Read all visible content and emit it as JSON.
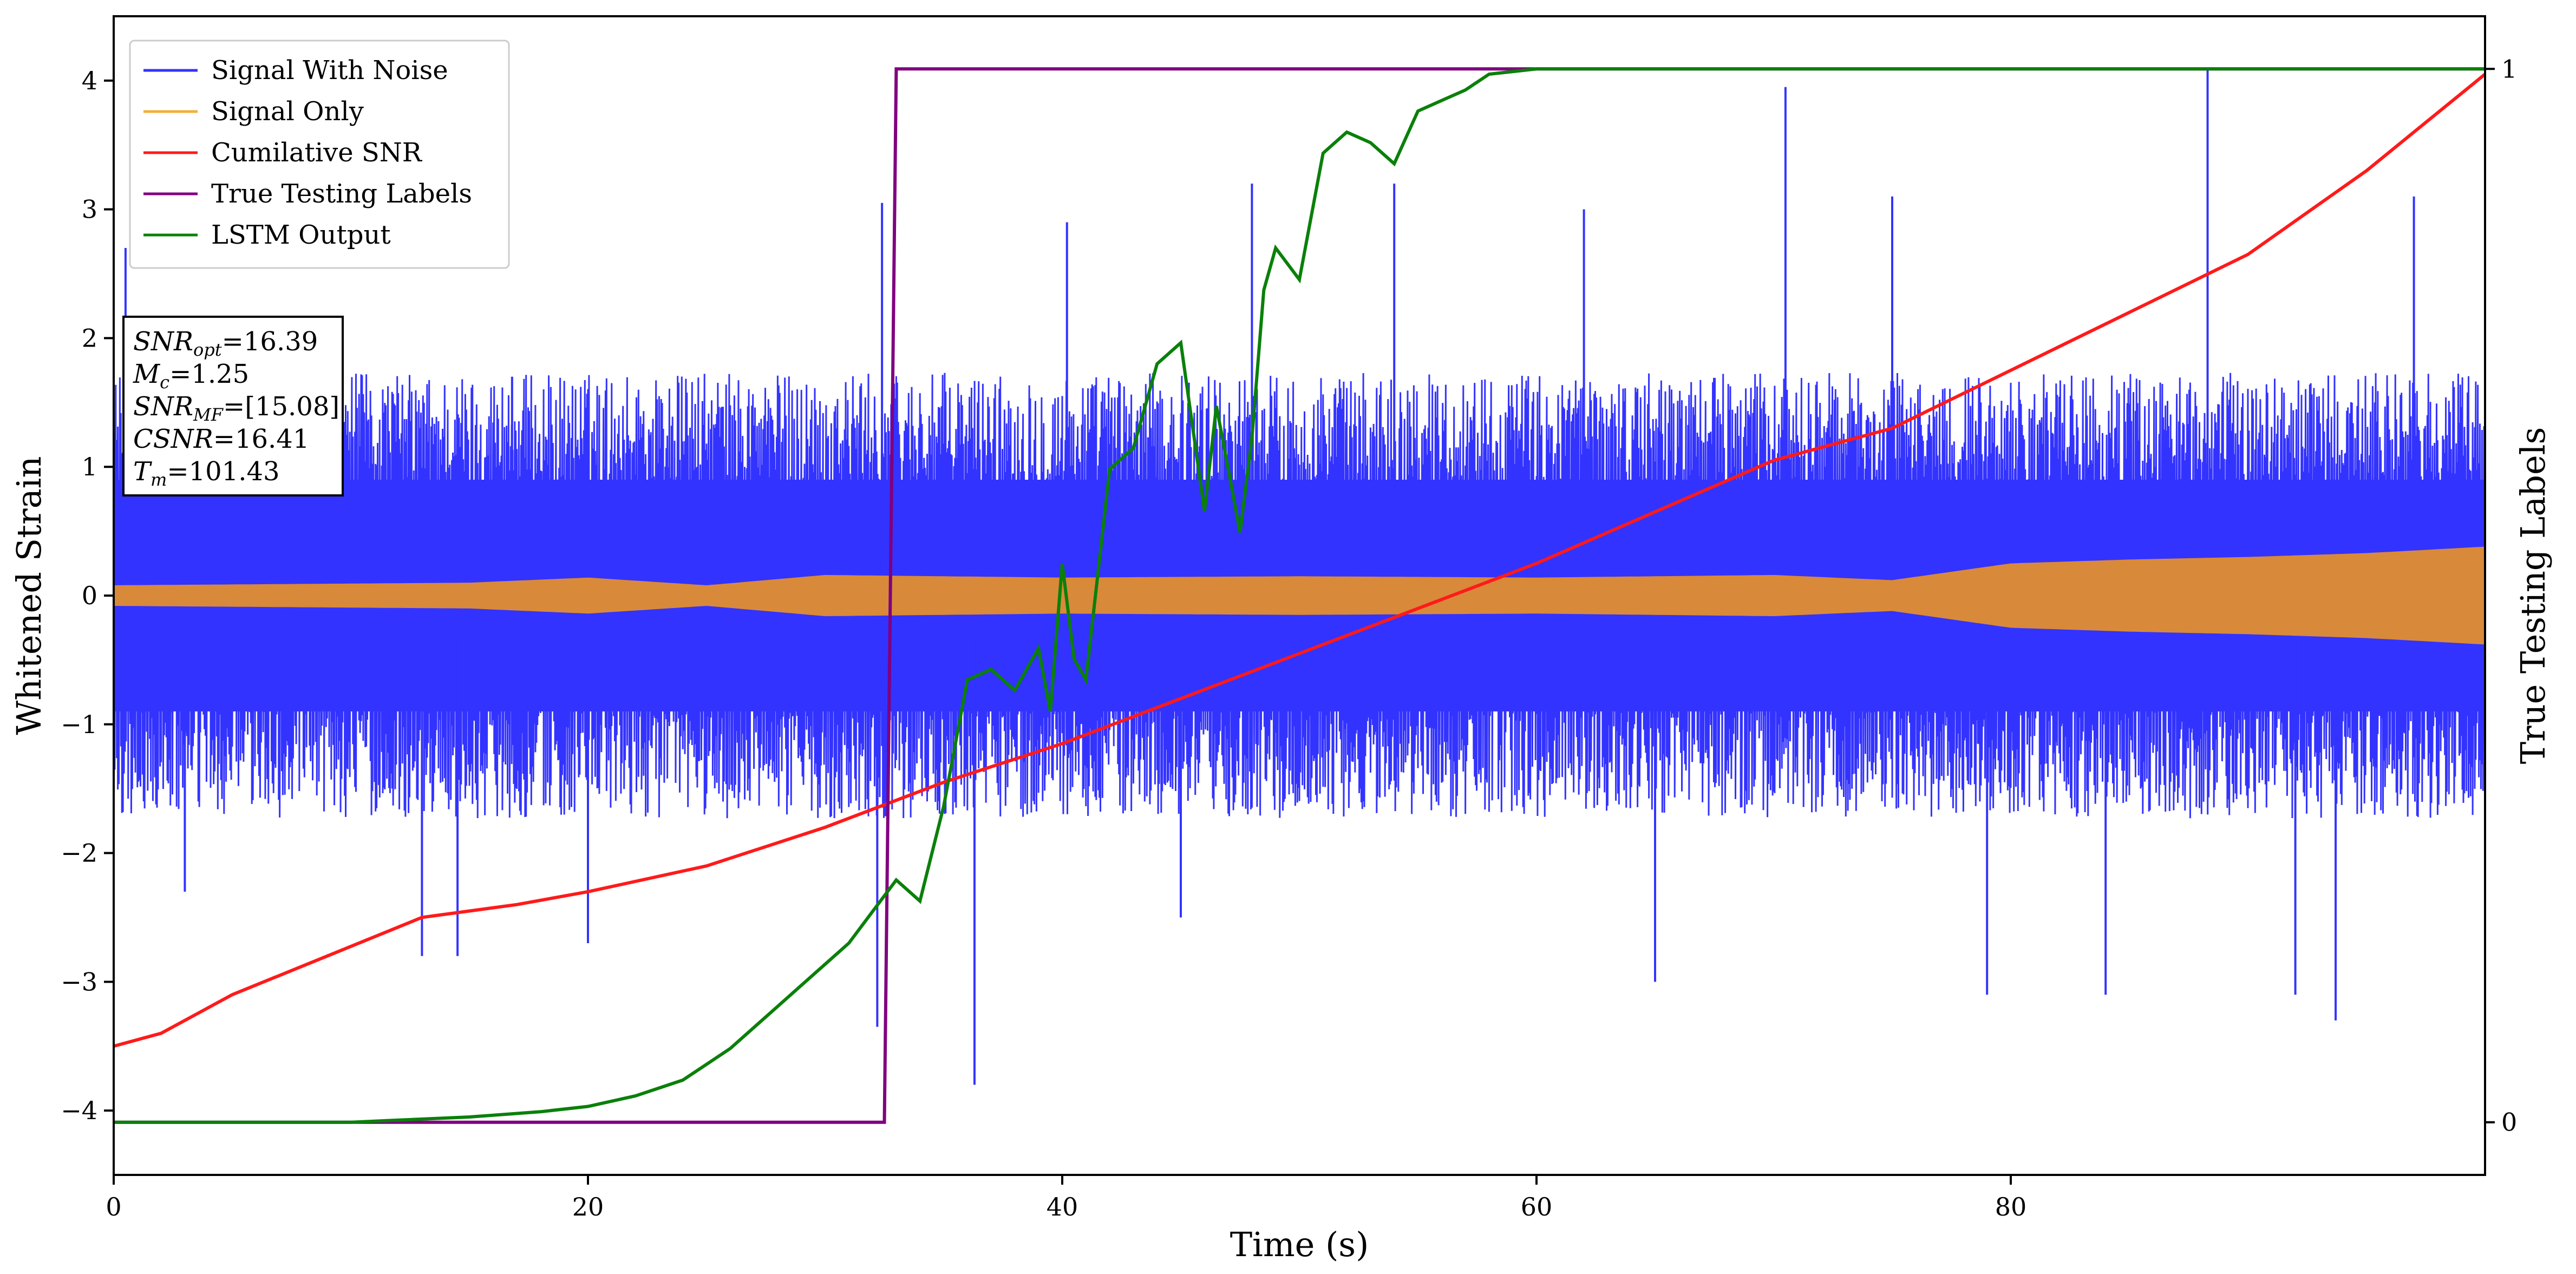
{
  "colors": {
    "noise": "#3333ff",
    "signal": "#d9893a",
    "signal_legend": "#f2b03c",
    "csnr": "#ff1a1a",
    "labels": "#800080",
    "lstm": "#0a800a"
  },
  "chart_data": {
    "type": "line",
    "xlabel": "Time (s)",
    "ylabel": "Whitened Strain",
    "ylabel_right": "True Testing Labels",
    "xlim": [
      0,
      100
    ],
    "ylim": [
      -4.5,
      4.5
    ],
    "ylim_right": [
      -0.05,
      1.05
    ],
    "xticks": [
      "0",
      "20",
      "40",
      "60",
      "80"
    ],
    "yticks": [
      "−4",
      "−3",
      "−2",
      "−1",
      "0",
      "1",
      "2",
      "3",
      "4"
    ],
    "yticks_right": [
      "0",
      "1"
    ],
    "legend": {
      "position": "top-left",
      "entries": [
        "Signal With Noise",
        "Signal Only",
        "Cumilative SNR",
        "True Testing Labels",
        "LSTM Output"
      ]
    },
    "annotation": {
      "lines": [
        {
          "base": "SNR",
          "sub": "opt",
          "value": "=16.39"
        },
        {
          "base": "M",
          "sub": "c",
          "value": "=1.25"
        },
        {
          "base": "SNR",
          "sub": "MF",
          "value": "=[15.08]"
        },
        {
          "base": "CSNR",
          "sub": "",
          "value": "=16.41"
        },
        {
          "base": "T",
          "sub": "m",
          "value": "=101.43"
        }
      ]
    },
    "series": [
      {
        "name": "Signal With Noise",
        "axis": "left",
        "band": {
          "typical": 0.9,
          "extreme_max": 4.1,
          "extreme_min": -3.8,
          "inner_hole": 0.2
        },
        "spikes": [
          [
            0.5,
            2.7
          ],
          [
            3,
            -2.3
          ],
          [
            13,
            -2.8
          ],
          [
            14.5,
            -2.8
          ],
          [
            16.8,
            1.7
          ],
          [
            20,
            -2.7
          ],
          [
            32.4,
            3.05
          ],
          [
            32.2,
            -3.35
          ],
          [
            36.3,
            -3.8
          ],
          [
            40.2,
            2.9
          ],
          [
            45,
            -2.5
          ],
          [
            48,
            3.2
          ],
          [
            54,
            3.2
          ],
          [
            62,
            3.0
          ],
          [
            65,
            -3.0
          ],
          [
            70.5,
            3.95
          ],
          [
            75,
            3.1
          ],
          [
            79,
            -3.1
          ],
          [
            84,
            -3.1
          ],
          [
            88.3,
            4.1
          ],
          [
            92,
            -3.1
          ],
          [
            93.7,
            -3.3
          ],
          [
            97,
            3.1
          ]
        ]
      },
      {
        "name": "Signal Only",
        "axis": "left",
        "amplitude": [
          [
            0,
            0.08
          ],
          [
            15,
            0.1
          ],
          [
            20,
            0.14
          ],
          [
            25,
            0.08
          ],
          [
            30,
            0.16
          ],
          [
            40,
            0.14
          ],
          [
            50,
            0.15
          ],
          [
            60,
            0.14
          ],
          [
            70,
            0.16
          ],
          [
            75,
            0.12
          ],
          [
            80,
            0.25
          ],
          [
            85,
            0.28
          ],
          [
            90,
            0.3
          ],
          [
            95,
            0.33
          ],
          [
            100,
            0.38
          ]
        ]
      },
      {
        "name": "Cumilative SNR",
        "axis": "left",
        "x": [
          0,
          2,
          5,
          9,
          13,
          17,
          20,
          25,
          30,
          35,
          40,
          45,
          50,
          55,
          60,
          65,
          70,
          75,
          80,
          85,
          90,
          95,
          100
        ],
        "y": [
          -3.5,
          -3.4,
          -3.1,
          -2.8,
          -2.5,
          -2.4,
          -2.3,
          -2.1,
          -1.8,
          -1.45,
          -1.15,
          -0.8,
          -0.45,
          -0.1,
          0.25,
          0.65,
          1.05,
          1.3,
          1.75,
          2.2,
          2.65,
          3.3,
          4.05
        ]
      },
      {
        "name": "True Testing Labels",
        "axis": "right",
        "x": [
          0,
          32.5,
          33.0,
          100
        ],
        "y": [
          0,
          0,
          1,
          1
        ]
      },
      {
        "name": "LSTM Output",
        "axis": "right",
        "x": [
          0,
          10,
          12,
          15,
          18,
          20,
          22,
          24,
          25,
          26,
          27,
          28,
          29,
          30,
          31,
          32,
          33,
          34,
          35,
          36,
          37,
          38,
          39,
          39.5,
          40,
          40.5,
          41,
          42,
          43,
          44,
          45,
          46,
          46.5,
          47,
          47.5,
          48,
          48.5,
          49,
          50,
          51,
          52,
          53,
          54,
          55,
          56,
          57,
          58,
          60,
          62,
          65,
          100
        ],
        "y": [
          0,
          0,
          0.002,
          0.005,
          0.01,
          0.015,
          0.025,
          0.04,
          0.055,
          0.07,
          0.09,
          0.11,
          0.13,
          0.15,
          0.17,
          0.2,
          0.23,
          0.21,
          0.3,
          0.42,
          0.43,
          0.41,
          0.45,
          0.39,
          0.53,
          0.44,
          0.42,
          0.62,
          0.64,
          0.72,
          0.74,
          0.58,
          0.68,
          0.62,
          0.56,
          0.65,
          0.79,
          0.83,
          0.8,
          0.92,
          0.94,
          0.93,
          0.91,
          0.96,
          0.97,
          0.98,
          0.995,
          1.0,
          1.0,
          1.0,
          1.0
        ]
      }
    ]
  }
}
